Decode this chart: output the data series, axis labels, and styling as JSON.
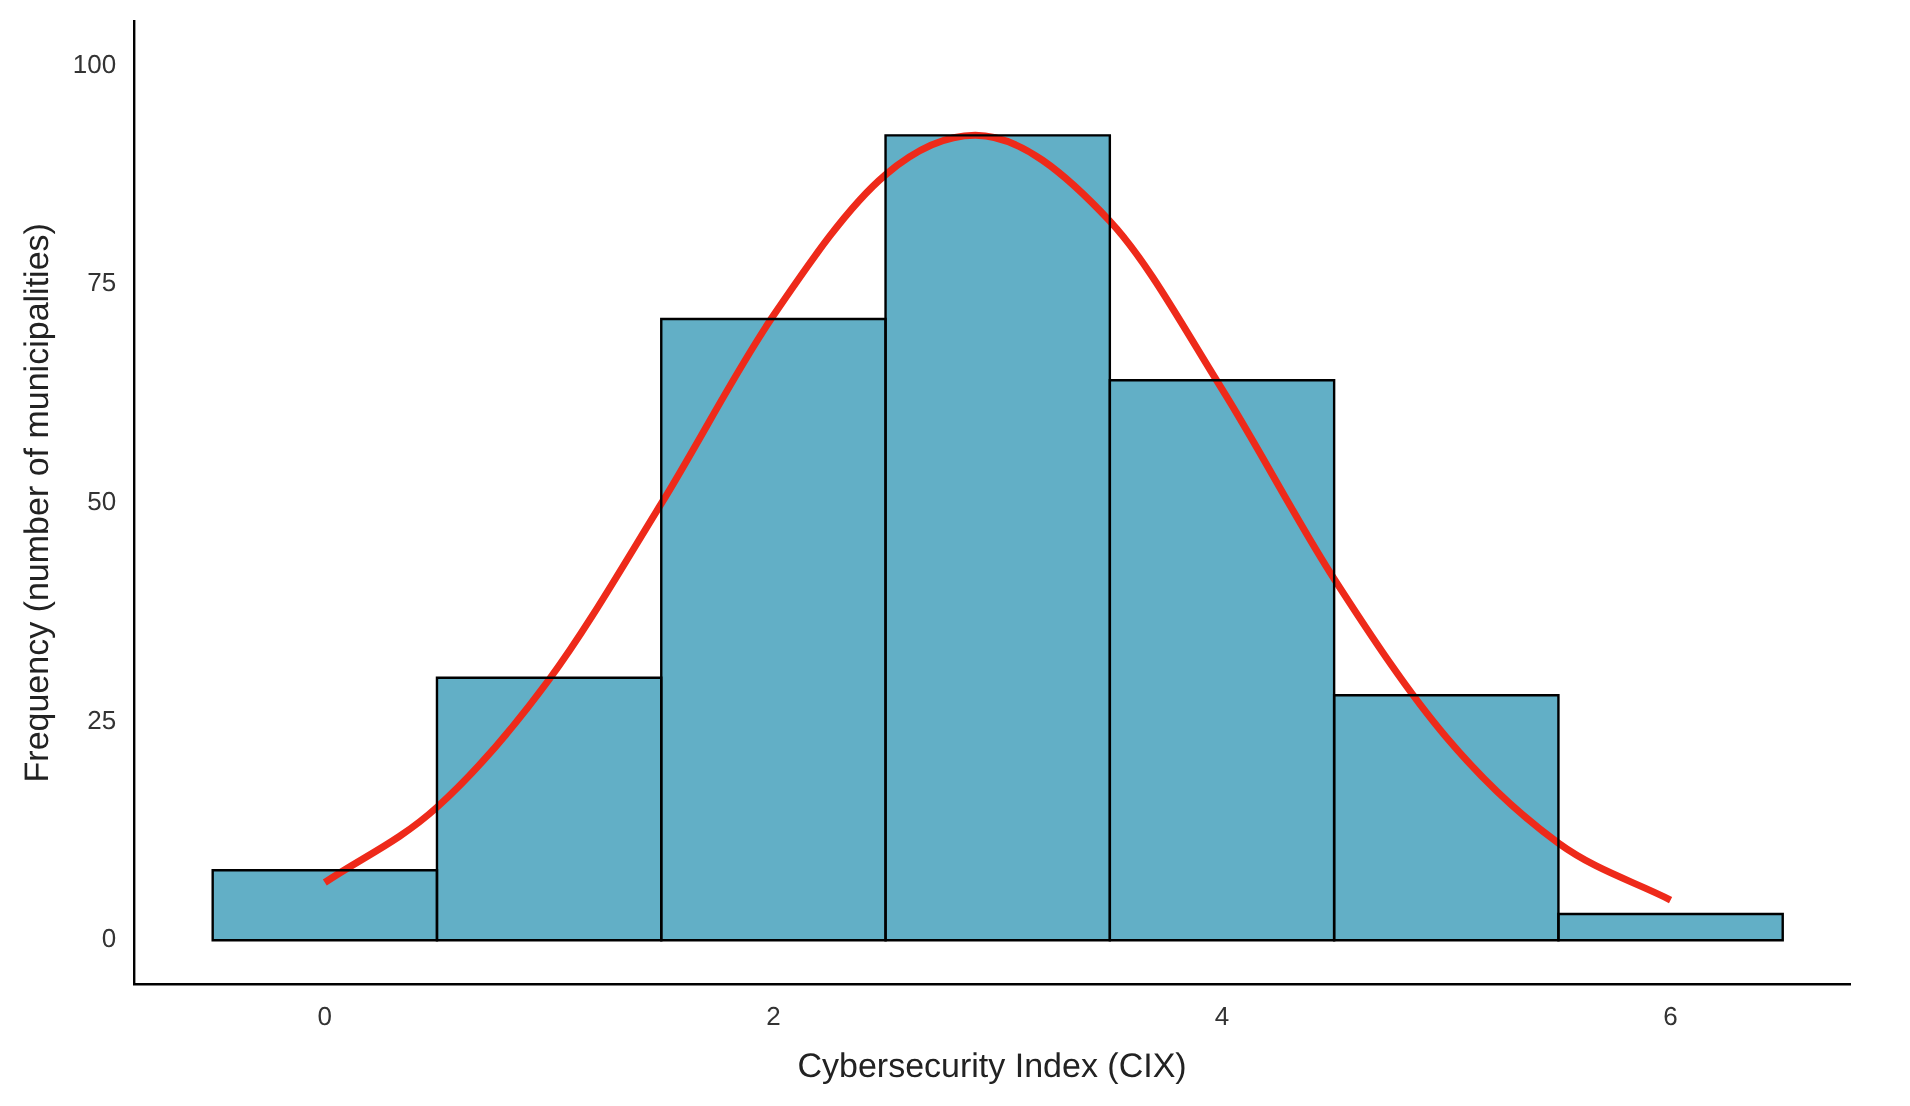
{
  "chart_data": {
    "type": "histogram",
    "xlabel": "Cybersecurity Index (CIX)",
    "ylabel": "Frequency (number of municipalities)",
    "bins": [
      -0.5,
      0.5,
      1.5,
      2.5,
      3.5,
      4.5,
      5.5,
      6.5
    ],
    "color": "#62afc6",
    "values": [
      8,
      30,
      71,
      92,
      64,
      28,
      3
    ],
    "series": [
      {
        "type": "line",
        "color": "#ee2a1a",
        "x": [
          0,
          0.5,
          1,
          1.5,
          2,
          2.5,
          2.9,
          3.5,
          4,
          4.5,
          5,
          5.5,
          6
        ],
        "values": [
          6.6,
          15.2,
          29.8,
          49.9,
          71.4,
          87.5,
          92,
          82.2,
          63,
          41.3,
          23.2,
          11.1,
          4.6
        ]
      }
    ],
    "xlim": [
      -0.85,
      6.8
    ],
    "xticks": [
      0,
      2,
      4,
      6
    ],
    "ylim": [
      -5,
      105
    ],
    "yticks": [
      0,
      25,
      50,
      75,
      100
    ],
    "grid": false,
    "legend": false,
    "marker": "none",
    "line_style": "solid"
  }
}
